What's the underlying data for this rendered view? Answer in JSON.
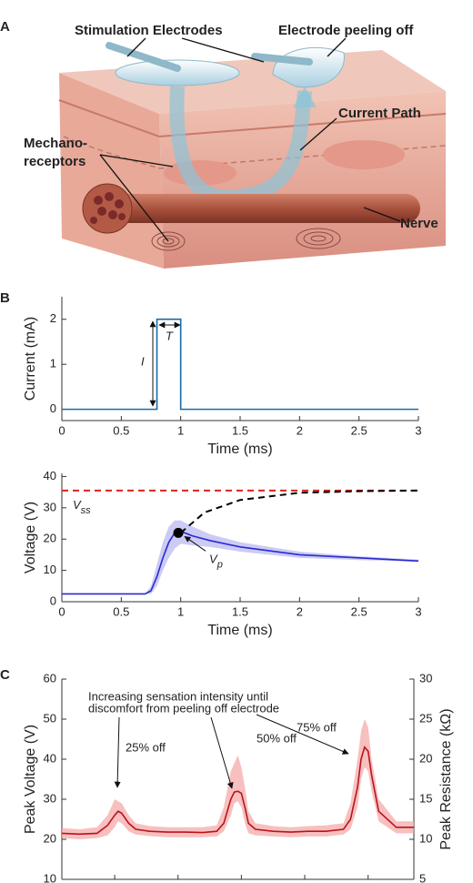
{
  "panels": [
    "A",
    "B",
    "C"
  ],
  "illustration": {
    "labels": [
      "Stimulation Electrodes",
      "Electrode peeling off",
      "Current Path",
      "Nerve"
    ],
    "mechanoreceptors": [
      "Mechano-",
      "receptors"
    ]
  },
  "chart_data": [
    {
      "type": "line",
      "xlabel": "Time (ms)",
      "ylabel": "Current (mA)",
      "xlim": [
        0,
        3
      ],
      "xticks": [
        0,
        0.5,
        1,
        1.5,
        2,
        2.5,
        3
      ],
      "ylim": [
        -0.25,
        2.5
      ],
      "yticks": [
        0,
        1,
        2
      ],
      "series": [
        {
          "color": "#1a6aa6",
          "x": [
            0,
            0.8,
            0.8,
            1.0,
            1.0,
            3
          ],
          "values": [
            0,
            0,
            2,
            2,
            0,
            0
          ]
        }
      ],
      "annotations": [
        "I",
        "T"
      ]
    },
    {
      "type": "line",
      "xlabel": "Time (ms)",
      "ylabel": "Voltage (V)",
      "xlim": [
        0,
        3
      ],
      "xticks": [
        0,
        0.5,
        1,
        1.5,
        2,
        2.5,
        3
      ],
      "ylim": [
        0,
        41
      ],
      "yticks": [
        0,
        10,
        20,
        30,
        40
      ],
      "bands": [
        {
          "color": "#b9b9f2",
          "x": [
            0,
            0.7,
            0.75,
            0.8,
            0.85,
            0.9,
            0.95,
            1.0,
            1.1,
            1.25,
            1.5,
            2,
            2.5,
            3
          ],
          "upper": [
            2.5,
            2.5,
            5,
            12,
            19,
            24,
            26,
            26,
            24,
            21.5,
            19,
            16,
            14.5,
            13.5
          ],
          "lower": [
            2.5,
            2.5,
            2.5,
            5,
            10,
            14,
            17,
            18.5,
            18,
            17.5,
            16,
            14,
            13.3,
            12.8
          ]
        }
      ],
      "series": [
        {
          "color": "#2a2ad0",
          "x": [
            0,
            0.7,
            0.75,
            0.8,
            0.85,
            0.9,
            0.95,
            1.0,
            1.1,
            1.25,
            1.5,
            2,
            2.5,
            3
          ],
          "values": [
            2.5,
            2.5,
            3.5,
            8,
            14,
            19,
            22,
            22.5,
            21,
            19.5,
            17.5,
            15,
            14,
            13
          ]
        },
        {
          "color": "#000000",
          "dash": true,
          "x": [
            1.0,
            1.2,
            1.5,
            2,
            2.5,
            3
          ],
          "values": [
            22,
            28.5,
            32.5,
            34.8,
            35.3,
            35.5
          ]
        }
      ],
      "hlines": [
        {
          "value": 35.5,
          "color": "#e0201b",
          "label": "V",
          "subscript": "ss"
        }
      ],
      "points": [
        {
          "x": 0.98,
          "y": 22,
          "label": "V",
          "subscript": "p"
        }
      ]
    },
    {
      "type": "line",
      "ylabel": "Peak Voltage (V)",
      "y2label": "Peak Resistance (kΩ)",
      "xlim": [
        0,
        100
      ],
      "xticks": [
        15,
        33,
        51,
        69,
        87
      ],
      "xtick_labels": false,
      "ylim": [
        10,
        60
      ],
      "yticks": [
        10,
        20,
        30,
        40,
        50,
        60
      ],
      "y2lim": [
        5,
        30
      ],
      "y2ticks": [
        5,
        10,
        15,
        20,
        25,
        30
      ],
      "bands": [
        {
          "color": "#f5aaaa",
          "x": [
            0,
            5,
            10,
            13,
            15,
            16,
            17,
            19,
            21,
            25,
            30,
            35,
            40,
            44,
            46,
            48,
            49,
            50,
            51,
            52,
            53,
            55,
            60,
            65,
            70,
            75,
            80,
            82,
            84,
            85,
            86,
            87,
            88,
            90,
            95,
            100
          ],
          "upper": [
            22.8,
            22.5,
            23,
            26,
            30,
            29.5,
            29,
            26,
            24,
            23.3,
            23,
            23,
            23,
            23.5,
            28,
            37,
            39,
            41,
            38,
            33,
            27,
            24,
            23.3,
            23,
            23.3,
            23.5,
            24,
            29,
            40,
            47,
            50,
            48,
            40,
            30,
            24.5,
            24.5
          ],
          "lower": [
            20.3,
            20,
            20.3,
            21,
            23,
            24.5,
            24,
            22,
            21.2,
            20.8,
            20.5,
            20.5,
            20.5,
            20.7,
            22,
            26,
            29,
            29.5,
            28,
            24,
            21.5,
            21,
            20.7,
            20.5,
            20.7,
            20.7,
            21.2,
            22.5,
            28,
            35,
            38,
            37,
            32,
            24.5,
            21.5,
            21.5
          ]
        }
      ],
      "series": [
        {
          "color": "#b8141c",
          "x": [
            0,
            5,
            10,
            13,
            15,
            16,
            17,
            19,
            21,
            25,
            30,
            35,
            40,
            44,
            46,
            48,
            49,
            50,
            51,
            52,
            53,
            55,
            60,
            65,
            70,
            75,
            80,
            82,
            84,
            85,
            86,
            87,
            88,
            90,
            95,
            100
          ],
          "values": [
            21.5,
            21.3,
            21.5,
            23.5,
            26,
            27,
            26.5,
            24,
            22.5,
            22,
            21.8,
            21.8,
            21.7,
            22,
            24,
            30,
            31.8,
            32,
            31.5,
            28,
            24,
            22.5,
            22,
            21.8,
            22,
            22,
            22.5,
            25,
            33,
            40,
            43,
            42,
            36,
            27,
            23,
            23
          ]
        }
      ],
      "annotations": [
        "Increasing sensation intensity until",
        "discomfort from peeling off electrode",
        "25% off",
        "50% off",
        "75% off"
      ]
    }
  ]
}
